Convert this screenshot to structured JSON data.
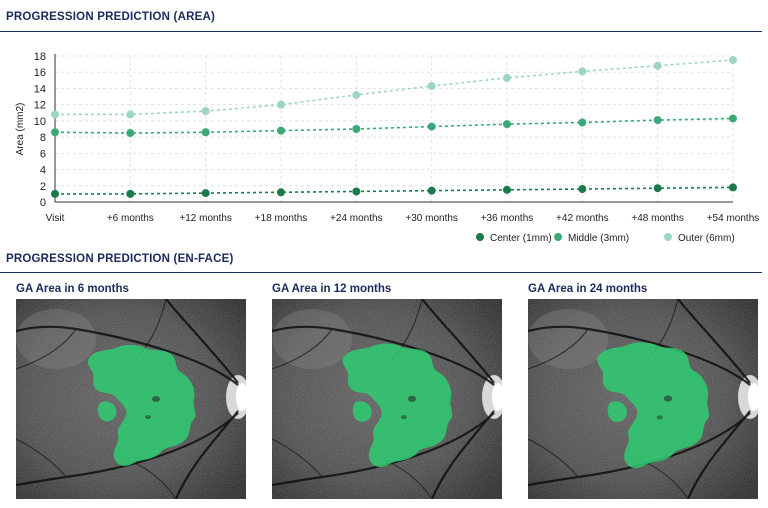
{
  "sections": {
    "area_title": "PROGRESSION PREDICTION (AREA)",
    "enface_title": "PROGRESSION PREDICTION (EN-FACE)"
  },
  "chart_data": {
    "type": "line",
    "title": "",
    "ylabel": "Area (mm2)",
    "xlabel": "",
    "categories": [
      "Visit",
      "+6 months",
      "+12 months",
      "+18 months",
      "+24 months",
      "+30 months",
      "+36 months",
      "+42 months",
      "+48 months",
      "+54 months"
    ],
    "ylim": [
      0,
      18
    ],
    "yticks": [
      0,
      2,
      4,
      6,
      8,
      10,
      12,
      14,
      16,
      18
    ],
    "grid": true,
    "legend_position": "bottom-right",
    "series": [
      {
        "name": "Center (1mm)",
        "color": "#1a7a4a",
        "values": [
          1.0,
          1.0,
          1.1,
          1.2,
          1.3,
          1.4,
          1.5,
          1.6,
          1.7,
          1.8
        ]
      },
      {
        "name": "Middle (3mm)",
        "color": "#3aa877",
        "values": [
          8.6,
          8.5,
          8.6,
          8.8,
          9.0,
          9.3,
          9.6,
          9.8,
          10.1,
          10.3
        ]
      },
      {
        "name": "Outer (6mm)",
        "color": "#9dd6bf",
        "values": [
          10.8,
          10.8,
          11.2,
          12.0,
          13.2,
          14.3,
          15.3,
          16.1,
          16.8,
          17.5
        ]
      }
    ]
  },
  "panels": [
    {
      "title": "GA Area in 6 months"
    },
    {
      "title": "GA Area in 12 months"
    },
    {
      "title": "GA Area in 24 months"
    }
  ],
  "colors": {
    "ga_fill": "#2ecc71",
    "navy": "#1b2a5c"
  }
}
